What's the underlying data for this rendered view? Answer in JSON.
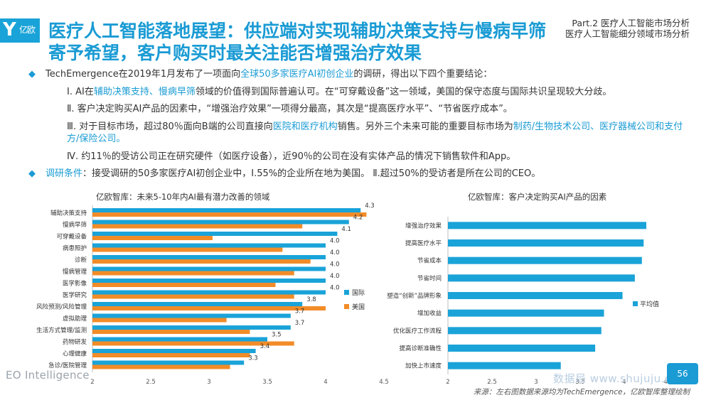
{
  "logo": {
    "letter": "Y",
    "text": "亿欧"
  },
  "header": {
    "title": "医疗人工智能落地展望：供应端对实现辅助决策支持与慢病早筛寄予希望，客户购买时最关注能否增强治疗效果",
    "part_line1": "Part.2  医疗人工智能市场分析",
    "part_line2": "医疗人工智能细分领域市场分析"
  },
  "body": {
    "bullet_icon": "◆",
    "intro_pre": "TechEmergence在2019年1月发布了一项面向",
    "intro_hl": "全球50多家医疗AI初创企业",
    "intro_post": "的调研，得出以下四个重要结论：",
    "c1_pre": "Ⅰ. AI在",
    "c1_hl": "辅助决策支持、慢病早筛",
    "c1_post": "领域的价值得到国际普遍认可。在“可穿戴设备”这一领域，美国的保守态度与国际共识呈现较大分歧。",
    "c2": "Ⅱ. 客户决定购买AI产品的因素中，“增强治疗效果”一项得分最高，其次是“提高医疗水平”、“节省医疗成本”。",
    "c3_pre": "Ⅲ. 对于目标市场，超过80％面向B端的公司直接向",
    "c3_hl1": "医院和医疗机构",
    "c3_mid": "销售。另外三个未来可能的重要目标市场为",
    "c3_hl2": "制药/生物技术公司、医疗器械公司和支付方/保险公司。",
    "c4": "Ⅳ. 约11％的受访公司正在研究硬件（如医疗设备），近90％的公司在没有实体产品的情况下销售软件和App。",
    "cond_label": "调研条件",
    "cond_text": "：接受调研的50多家医疗AI初创企业中，Ⅰ.55%的企业所在地为美国。 Ⅱ.超过50%的受访者是所在公司的CEO。"
  },
  "footer": {
    "brand": "EO Intelligence",
    "source": "来源：左右图数据来源均为TechEmergence，亿欧智库整理绘制",
    "page": "56",
    "watermark": "数据局 www.shujuju.cn"
  },
  "chart_data": [
    {
      "type": "bar",
      "orientation": "horizontal",
      "title": "亿欧智库：未来5-10年内AI最有潜力改善的领域",
      "categories": [
        "辅助决策支持",
        "慢病早筛",
        "可穿戴设备",
        "病患照护",
        "诊断",
        "慢病管理",
        "医学影像",
        "医学研究",
        "风险预测/风险管理",
        "虚拟助理",
        "生活方式管理/监测",
        "药物研发",
        "心理健康",
        "急诊/医院管理"
      ],
      "series": [
        {
          "name": "国际",
          "color": "#1aa3d8",
          "values": [
            4.3,
            4.2,
            4.1,
            4.0,
            4.0,
            4.0,
            4.0,
            4.0,
            3.8,
            3.7,
            3.7,
            3.5,
            3.4,
            3.3
          ]
        },
        {
          "name": "美国",
          "color": "#f28c28",
          "values": [
            4.35,
            3.8,
            3.03,
            3.63,
            3.87,
            3.73,
            3.57,
            3.73,
            4.0,
            3.15,
            3.35,
            3.73,
            3.35,
            3.18
          ]
        }
      ],
      "data_labels": [
        "4.3",
        "4.2",
        "4.1",
        "4.0",
        "4.0",
        "4.0",
        "4.0",
        "4.0",
        "3.8",
        "3.7",
        "3.7",
        "3.5",
        "3.4",
        "3.3"
      ],
      "xlim": [
        2,
        4.5
      ],
      "xticks": [
        "2",
        "2.5",
        "3",
        "3.5",
        "4",
        "4.5"
      ],
      "legend": "right"
    },
    {
      "type": "bar",
      "orientation": "horizontal",
      "title": "亿欧智库：客户决定购买AI产品的因素",
      "categories": [
        "增强治疗效果",
        "提高医疗水平",
        "节省成本",
        "节省时间",
        "塑造“创新”品牌形象",
        "增加收益",
        "优化医疗工作流程",
        "提高诊断准确性",
        "加快上市速度"
      ],
      "series": [
        {
          "name": "平均值",
          "color": "#1aa3d8",
          "values": [
            4.25,
            4.22,
            4.2,
            4.12,
            3.98,
            3.77,
            3.74,
            3.67,
            3.28
          ]
        }
      ],
      "xlim": [
        2,
        4.5
      ],
      "xticks": [
        "2",
        "2.5",
        "3",
        "3.5",
        "4",
        "4.5"
      ],
      "legend": "right"
    }
  ]
}
